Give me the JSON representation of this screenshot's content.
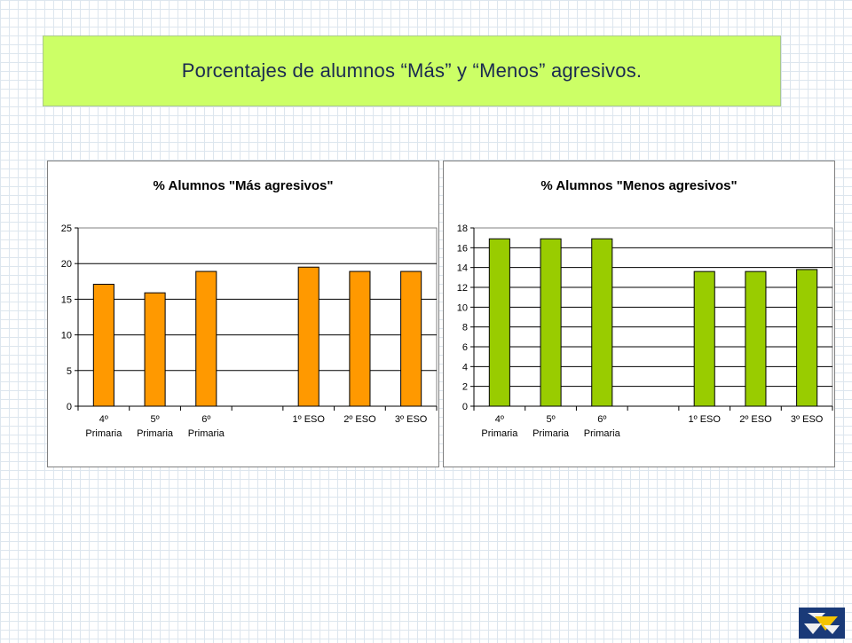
{
  "slide": {
    "title": "Porcentajes de alumnos “Más” y “Menos” agresivos."
  },
  "chart_data": [
    {
      "type": "bar",
      "title": "% Alumnos \"Más agresivos\"",
      "categories": [
        [
          "4º",
          "Primaria"
        ],
        [
          "5º",
          "Primaria"
        ],
        [
          "6º",
          "Primaria"
        ],
        [
          ""
        ],
        [
          "1º ESO"
        ],
        [
          "2º ESO"
        ],
        [
          "3º ESO"
        ]
      ],
      "values": [
        17.1,
        15.9,
        18.9,
        null,
        19.5,
        18.9,
        18.9
      ],
      "ylim": [
        0,
        25
      ],
      "yticks": [
        0,
        5,
        10,
        15,
        20,
        25
      ],
      "grid": true,
      "color": "#ff9900"
    },
    {
      "type": "bar",
      "title": "% Alumnos \"Menos agresivos\"",
      "categories": [
        [
          "4º",
          "Primaria"
        ],
        [
          "5º",
          "Primaria"
        ],
        [
          "6º",
          "Primaria"
        ],
        [
          ""
        ],
        [
          "1º ESO"
        ],
        [
          "2º ESO"
        ],
        [
          "3º ESO"
        ]
      ],
      "values": [
        16.9,
        16.9,
        16.9,
        null,
        13.6,
        13.6,
        13.8
      ],
      "ylim": [
        0,
        18
      ],
      "yticks": [
        0,
        2,
        4,
        6,
        8,
        10,
        12,
        14,
        16,
        18
      ],
      "grid": true,
      "color": "#99cc00"
    }
  ],
  "logo": {
    "icon": "institution-logo-icon"
  }
}
